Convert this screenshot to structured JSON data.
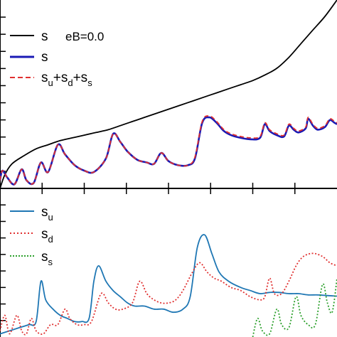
{
  "chart_data": [
    {
      "type": "line",
      "panel": "top",
      "title": "",
      "xlabel": "",
      "ylabel": "",
      "grid": false,
      "legend_position": "top-left",
      "series": [
        {
          "name": "s   eB=0.0",
          "color": "#000000",
          "dash": "solid",
          "points": [
            [
              0,
              0
            ],
            [
              0.02,
              0.5
            ],
            [
              0.05,
              0.9
            ],
            [
              0.1,
              1.2
            ],
            [
              0.15,
              1.45
            ],
            [
              0.2,
              1.6
            ],
            [
              0.25,
              1.75
            ],
            [
              0.3,
              1.85
            ],
            [
              0.35,
              1.95
            ],
            [
              0.4,
              2.05
            ],
            [
              0.45,
              2.15
            ],
            [
              0.5,
              2.3
            ],
            [
              0.55,
              2.45
            ],
            [
              0.6,
              2.6
            ],
            [
              0.65,
              2.75
            ],
            [
              0.7,
              2.9
            ],
            [
              0.75,
              3.05
            ],
            [
              0.8,
              3.2
            ],
            [
              0.85,
              3.35
            ],
            [
              0.9,
              3.5
            ],
            [
              0.95,
              3.65
            ],
            [
              1.0,
              3.8
            ],
            [
              1.05,
              3.95
            ],
            [
              1.1,
              4.15
            ],
            [
              1.15,
              4.4
            ],
            [
              1.2,
              4.8
            ],
            [
              1.25,
              5.3
            ],
            [
              1.3,
              5.8
            ],
            [
              1.35,
              6.3
            ],
            [
              1.4,
              6.9
            ]
          ]
        },
        {
          "name": "s",
          "color": "#1a1ab5",
          "dash": "solid",
          "points": [
            [
              0,
              0.3
            ],
            [
              0.01,
              0.65
            ],
            [
              0.03,
              0.4
            ],
            [
              0.06,
              0.15
            ],
            [
              0.09,
              0.7
            ],
            [
              0.11,
              0.3
            ],
            [
              0.14,
              0.2
            ],
            [
              0.17,
              0.95
            ],
            [
              0.2,
              0.6
            ],
            [
              0.24,
              1.6
            ],
            [
              0.27,
              1.25
            ],
            [
              0.31,
              0.85
            ],
            [
              0.35,
              0.65
            ],
            [
              0.39,
              0.6
            ],
            [
              0.44,
              1.1
            ],
            [
              0.47,
              2.0
            ],
            [
              0.5,
              1.7
            ],
            [
              0.53,
              1.35
            ],
            [
              0.57,
              1.05
            ],
            [
              0.61,
              0.95
            ],
            [
              0.64,
              0.9
            ],
            [
              0.67,
              1.3
            ],
            [
              0.7,
              1.0
            ],
            [
              0.74,
              0.85
            ],
            [
              0.78,
              0.85
            ],
            [
              0.81,
              1.1
            ],
            [
              0.84,
              2.4
            ],
            [
              0.87,
              2.6
            ],
            [
              0.9,
              2.4
            ],
            [
              0.93,
              2.1
            ],
            [
              0.96,
              1.95
            ],
            [
              1.0,
              1.85
            ],
            [
              1.04,
              1.8
            ],
            [
              1.08,
              1.85
            ],
            [
              1.1,
              2.35
            ],
            [
              1.12,
              2.1
            ],
            [
              1.15,
              1.95
            ],
            [
              1.18,
              1.9
            ],
            [
              1.2,
              2.3
            ],
            [
              1.22,
              2.15
            ],
            [
              1.24,
              2.05
            ],
            [
              1.27,
              2.2
            ],
            [
              1.28,
              2.55
            ],
            [
              1.3,
              2.3
            ],
            [
              1.32,
              2.15
            ],
            [
              1.35,
              2.25
            ],
            [
              1.37,
              2.5
            ],
            [
              1.39,
              2.4
            ],
            [
              1.4,
              2.35
            ]
          ]
        },
        {
          "name": "su+sd+ss",
          "color": "#e03030",
          "dash": "dashed",
          "points": [
            [
              0,
              0.3
            ],
            [
              0.01,
              0.65
            ],
            [
              0.03,
              0.4
            ],
            [
              0.06,
              0.15
            ],
            [
              0.09,
              0.7
            ],
            [
              0.11,
              0.3
            ],
            [
              0.14,
              0.2
            ],
            [
              0.17,
              0.95
            ],
            [
              0.2,
              0.6
            ],
            [
              0.24,
              1.6
            ],
            [
              0.27,
              1.25
            ],
            [
              0.31,
              0.85
            ],
            [
              0.35,
              0.65
            ],
            [
              0.39,
              0.6
            ],
            [
              0.44,
              1.1
            ],
            [
              0.47,
              2.0
            ],
            [
              0.5,
              1.7
            ],
            [
              0.53,
              1.35
            ],
            [
              0.57,
              1.05
            ],
            [
              0.61,
              0.95
            ],
            [
              0.64,
              0.9
            ],
            [
              0.67,
              1.3
            ],
            [
              0.7,
              1.0
            ],
            [
              0.74,
              0.85
            ],
            [
              0.78,
              0.85
            ],
            [
              0.81,
              1.15
            ],
            [
              0.84,
              2.45
            ],
            [
              0.87,
              2.65
            ],
            [
              0.9,
              2.45
            ],
            [
              0.93,
              2.15
            ],
            [
              0.96,
              2.0
            ],
            [
              1.0,
              1.9
            ],
            [
              1.04,
              1.85
            ],
            [
              1.08,
              1.9
            ],
            [
              1.1,
              2.4
            ],
            [
              1.12,
              2.15
            ],
            [
              1.15,
              2.0
            ],
            [
              1.18,
              1.95
            ],
            [
              1.2,
              2.35
            ],
            [
              1.22,
              2.2
            ],
            [
              1.24,
              2.1
            ],
            [
              1.27,
              2.25
            ],
            [
              1.28,
              2.6
            ],
            [
              1.3,
              2.35
            ],
            [
              1.32,
              2.2
            ],
            [
              1.35,
              2.3
            ],
            [
              1.37,
              2.55
            ],
            [
              1.39,
              2.45
            ],
            [
              1.4,
              2.4
            ]
          ]
        }
      ]
    },
    {
      "type": "line",
      "panel": "bottom",
      "title": "",
      "xlabel": "",
      "ylabel": "",
      "grid": false,
      "legend_position": "top-left",
      "series": [
        {
          "name": "su",
          "color": "#1f77b4",
          "dash": "solid",
          "points": [
            [
              0,
              0.05
            ],
            [
              0.04,
              0.1
            ],
            [
              0.08,
              0.15
            ],
            [
              0.12,
              0.2
            ],
            [
              0.15,
              0.25
            ],
            [
              0.17,
              0.9
            ],
            [
              0.19,
              0.6
            ],
            [
              0.22,
              0.45
            ],
            [
              0.25,
              0.35
            ],
            [
              0.28,
              0.3
            ],
            [
              0.31,
              0.25
            ],
            [
              0.34,
              0.25
            ],
            [
              0.37,
              0.3
            ],
            [
              0.39,
              0.9
            ],
            [
              0.41,
              1.15
            ],
            [
              0.44,
              0.9
            ],
            [
              0.47,
              0.75
            ],
            [
              0.5,
              0.65
            ],
            [
              0.53,
              0.55
            ],
            [
              0.56,
              0.5
            ],
            [
              0.6,
              0.5
            ],
            [
              0.64,
              0.45
            ],
            [
              0.68,
              0.45
            ],
            [
              0.72,
              0.4
            ],
            [
              0.76,
              0.45
            ],
            [
              0.79,
              0.65
            ],
            [
              0.82,
              1.45
            ],
            [
              0.85,
              1.65
            ],
            [
              0.88,
              1.35
            ],
            [
              0.91,
              1.05
            ],
            [
              0.95,
              0.9
            ],
            [
              1.0,
              0.8
            ],
            [
              1.04,
              0.75
            ],
            [
              1.08,
              0.7
            ],
            [
              1.12,
              0.72
            ],
            [
              1.16,
              0.72
            ],
            [
              1.2,
              0.7
            ],
            [
              1.24,
              0.7
            ],
            [
              1.28,
              0.68
            ],
            [
              1.32,
              0.68
            ],
            [
              1.36,
              0.67
            ],
            [
              1.4,
              0.66
            ]
          ]
        },
        {
          "name": "sd",
          "color": "#e03030",
          "dash": "dotted",
          "points": [
            [
              0,
              0.1
            ],
            [
              0.02,
              0.35
            ],
            [
              0.04,
              0.05
            ],
            [
              0.07,
              0.35
            ],
            [
              0.09,
              0.1
            ],
            [
              0.11,
              0.05
            ],
            [
              0.13,
              0.3
            ],
            [
              0.15,
              0.1
            ],
            [
              0.18,
              0.05
            ],
            [
              0.21,
              0.2
            ],
            [
              0.24,
              0.2
            ],
            [
              0.27,
              0.45
            ],
            [
              0.29,
              0.3
            ],
            [
              0.32,
              0.2
            ],
            [
              0.35,
              0.2
            ],
            [
              0.38,
              0.25
            ],
            [
              0.42,
              0.7
            ],
            [
              0.45,
              0.55
            ],
            [
              0.48,
              0.45
            ],
            [
              0.51,
              0.45
            ],
            [
              0.55,
              0.55
            ],
            [
              0.58,
              0.9
            ],
            [
              0.61,
              0.7
            ],
            [
              0.64,
              0.6
            ],
            [
              0.67,
              0.55
            ],
            [
              0.7,
              0.55
            ],
            [
              0.73,
              0.6
            ],
            [
              0.76,
              0.75
            ],
            [
              0.8,
              1.05
            ],
            [
              0.83,
              1.2
            ],
            [
              0.86,
              1.05
            ],
            [
              0.89,
              0.95
            ],
            [
              0.92,
              0.9
            ],
            [
              0.96,
              0.8
            ],
            [
              1.0,
              0.75
            ],
            [
              1.04,
              0.65
            ],
            [
              1.08,
              0.6
            ],
            [
              1.1,
              0.65
            ],
            [
              1.12,
              0.95
            ],
            [
              1.14,
              0.7
            ],
            [
              1.17,
              0.7
            ],
            [
              1.2,
              0.9
            ],
            [
              1.23,
              1.15
            ],
            [
              1.26,
              1.3
            ],
            [
              1.3,
              1.35
            ],
            [
              1.34,
              1.3
            ],
            [
              1.37,
              1.2
            ],
            [
              1.4,
              1.15
            ]
          ]
        },
        {
          "name": "ss",
          "color": "#2ca02c",
          "dash": "dotted",
          "points": [
            [
              1.05,
              0.0
            ],
            [
              1.07,
              0.3
            ],
            [
              1.09,
              0.1
            ],
            [
              1.12,
              0.05
            ],
            [
              1.15,
              0.45
            ],
            [
              1.17,
              0.2
            ],
            [
              1.2,
              0.15
            ],
            [
              1.23,
              0.65
            ],
            [
              1.25,
              0.35
            ],
            [
              1.28,
              0.2
            ],
            [
              1.31,
              0.2
            ],
            [
              1.34,
              0.85
            ],
            [
              1.36,
              0.55
            ],
            [
              1.38,
              0.4
            ],
            [
              1.4,
              0.95
            ]
          ]
        }
      ]
    }
  ],
  "legend": {
    "top": [
      {
        "label": "s",
        "extra": "eB=0.0",
        "color": "#000000",
        "dash": "solid"
      },
      {
        "label": "s",
        "sub": [],
        "color": "#1a1ab5",
        "dash": "solid"
      },
      {
        "label": "su+sd+ss",
        "color": "#e03030",
        "dash": "dashed"
      }
    ],
    "bottom": [
      {
        "label": "su",
        "color": "#1f77b4",
        "dash": "solid"
      },
      {
        "label": "sd",
        "color": "#e03030",
        "dash": "dotted"
      },
      {
        "label": "ss",
        "color": "#2ca02c",
        "dash": "dotted"
      }
    ]
  },
  "text": {
    "leg_top_s1": "s",
    "leg_top_eb": "eB=0.0",
    "leg_top_s2": "s",
    "leg_top_s3_a": "s",
    "leg_top_s3_a_sub": "u",
    "leg_top_s3_plus1": "+s",
    "leg_top_s3_b_sub": "d",
    "leg_top_s3_plus2": "+s",
    "leg_top_s3_c_sub": "s",
    "leg_bot_su": "s",
    "leg_bot_su_sub": "u",
    "leg_bot_sd": "s",
    "leg_bot_sd_sub": "d",
    "leg_bot_ss": "s",
    "leg_bot_ss_sub": "s"
  }
}
